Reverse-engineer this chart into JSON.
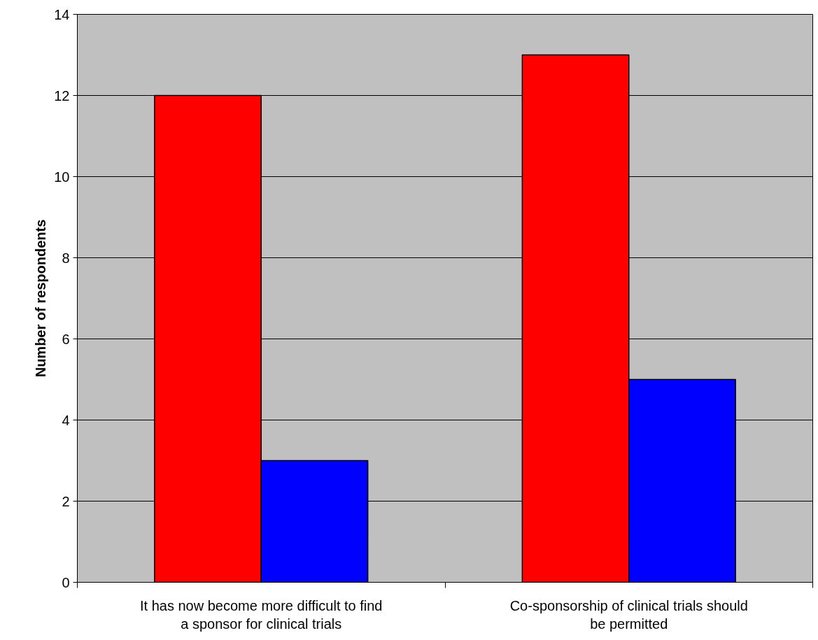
{
  "chart_data": {
    "type": "bar",
    "ylabel": "Number of respondents",
    "categories": [
      "It has now become more difficult to find a sponsor for clinical trials",
      "Co-sponsorship of clinical trials should be permitted"
    ],
    "series": [
      {
        "color": "#ff0000",
        "values": [
          12,
          13
        ]
      },
      {
        "color": "#0000ff",
        "values": [
          3,
          5
        ]
      }
    ],
    "ylim": [
      0,
      14
    ],
    "yticks": [
      0,
      2,
      4,
      6,
      8,
      10,
      12,
      14
    ],
    "grid": "y"
  }
}
